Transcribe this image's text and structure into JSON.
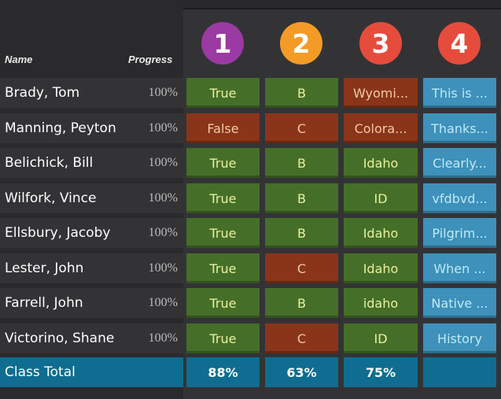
{
  "header": {
    "name_label": "Name",
    "progress_label": "Progress"
  },
  "questions": [
    {
      "number": "1",
      "color": "#9b3aa2"
    },
    {
      "number": "2",
      "color": "#f49b27"
    },
    {
      "number": "3",
      "color": "#e64c3c"
    },
    {
      "number": "4",
      "color": "#e64c3c"
    }
  ],
  "students": [
    {
      "name": "Brady, Tom",
      "progress": "100%",
      "answers": [
        "True",
        "B",
        "Wyomi...",
        "This is ..."
      ],
      "status": [
        "green",
        "green",
        "red",
        "blue"
      ]
    },
    {
      "name": "Manning, Peyton",
      "progress": "100%",
      "answers": [
        "False",
        "C",
        "Colora...",
        "Thanks..."
      ],
      "status": [
        "red",
        "red",
        "red",
        "blue"
      ]
    },
    {
      "name": "Belichick, Bill",
      "progress": "100%",
      "answers": [
        "True",
        "B",
        "Idaho",
        "Clearly..."
      ],
      "status": [
        "green",
        "green",
        "green",
        "blue"
      ]
    },
    {
      "name": "Wilfork, Vince",
      "progress": "100%",
      "answers": [
        "True",
        "B",
        "ID",
        "vfdbvd..."
      ],
      "status": [
        "green",
        "green",
        "green",
        "blue"
      ]
    },
    {
      "name": "Ellsbury, Jacoby",
      "progress": "100%",
      "answers": [
        "True",
        "B",
        "Idaho",
        "Pilgrim..."
      ],
      "status": [
        "green",
        "green",
        "green",
        "blue"
      ]
    },
    {
      "name": "Lester, John",
      "progress": "100%",
      "answers": [
        "True",
        "C",
        "Idaho",
        "When ..."
      ],
      "status": [
        "green",
        "red",
        "green",
        "blue"
      ]
    },
    {
      "name": "Farrell, John",
      "progress": "100%",
      "answers": [
        "True",
        "B",
        "idaho",
        "Native ..."
      ],
      "status": [
        "green",
        "green",
        "green",
        "blue"
      ]
    },
    {
      "name": "Victorino, Shane",
      "progress": "100%",
      "answers": [
        "True",
        "C",
        "ID",
        "History"
      ],
      "status": [
        "green",
        "red",
        "green",
        "blue"
      ]
    }
  ],
  "class_total": {
    "label": "Class Total",
    "scores": [
      "88%",
      "63%",
      "75%",
      ""
    ]
  }
}
